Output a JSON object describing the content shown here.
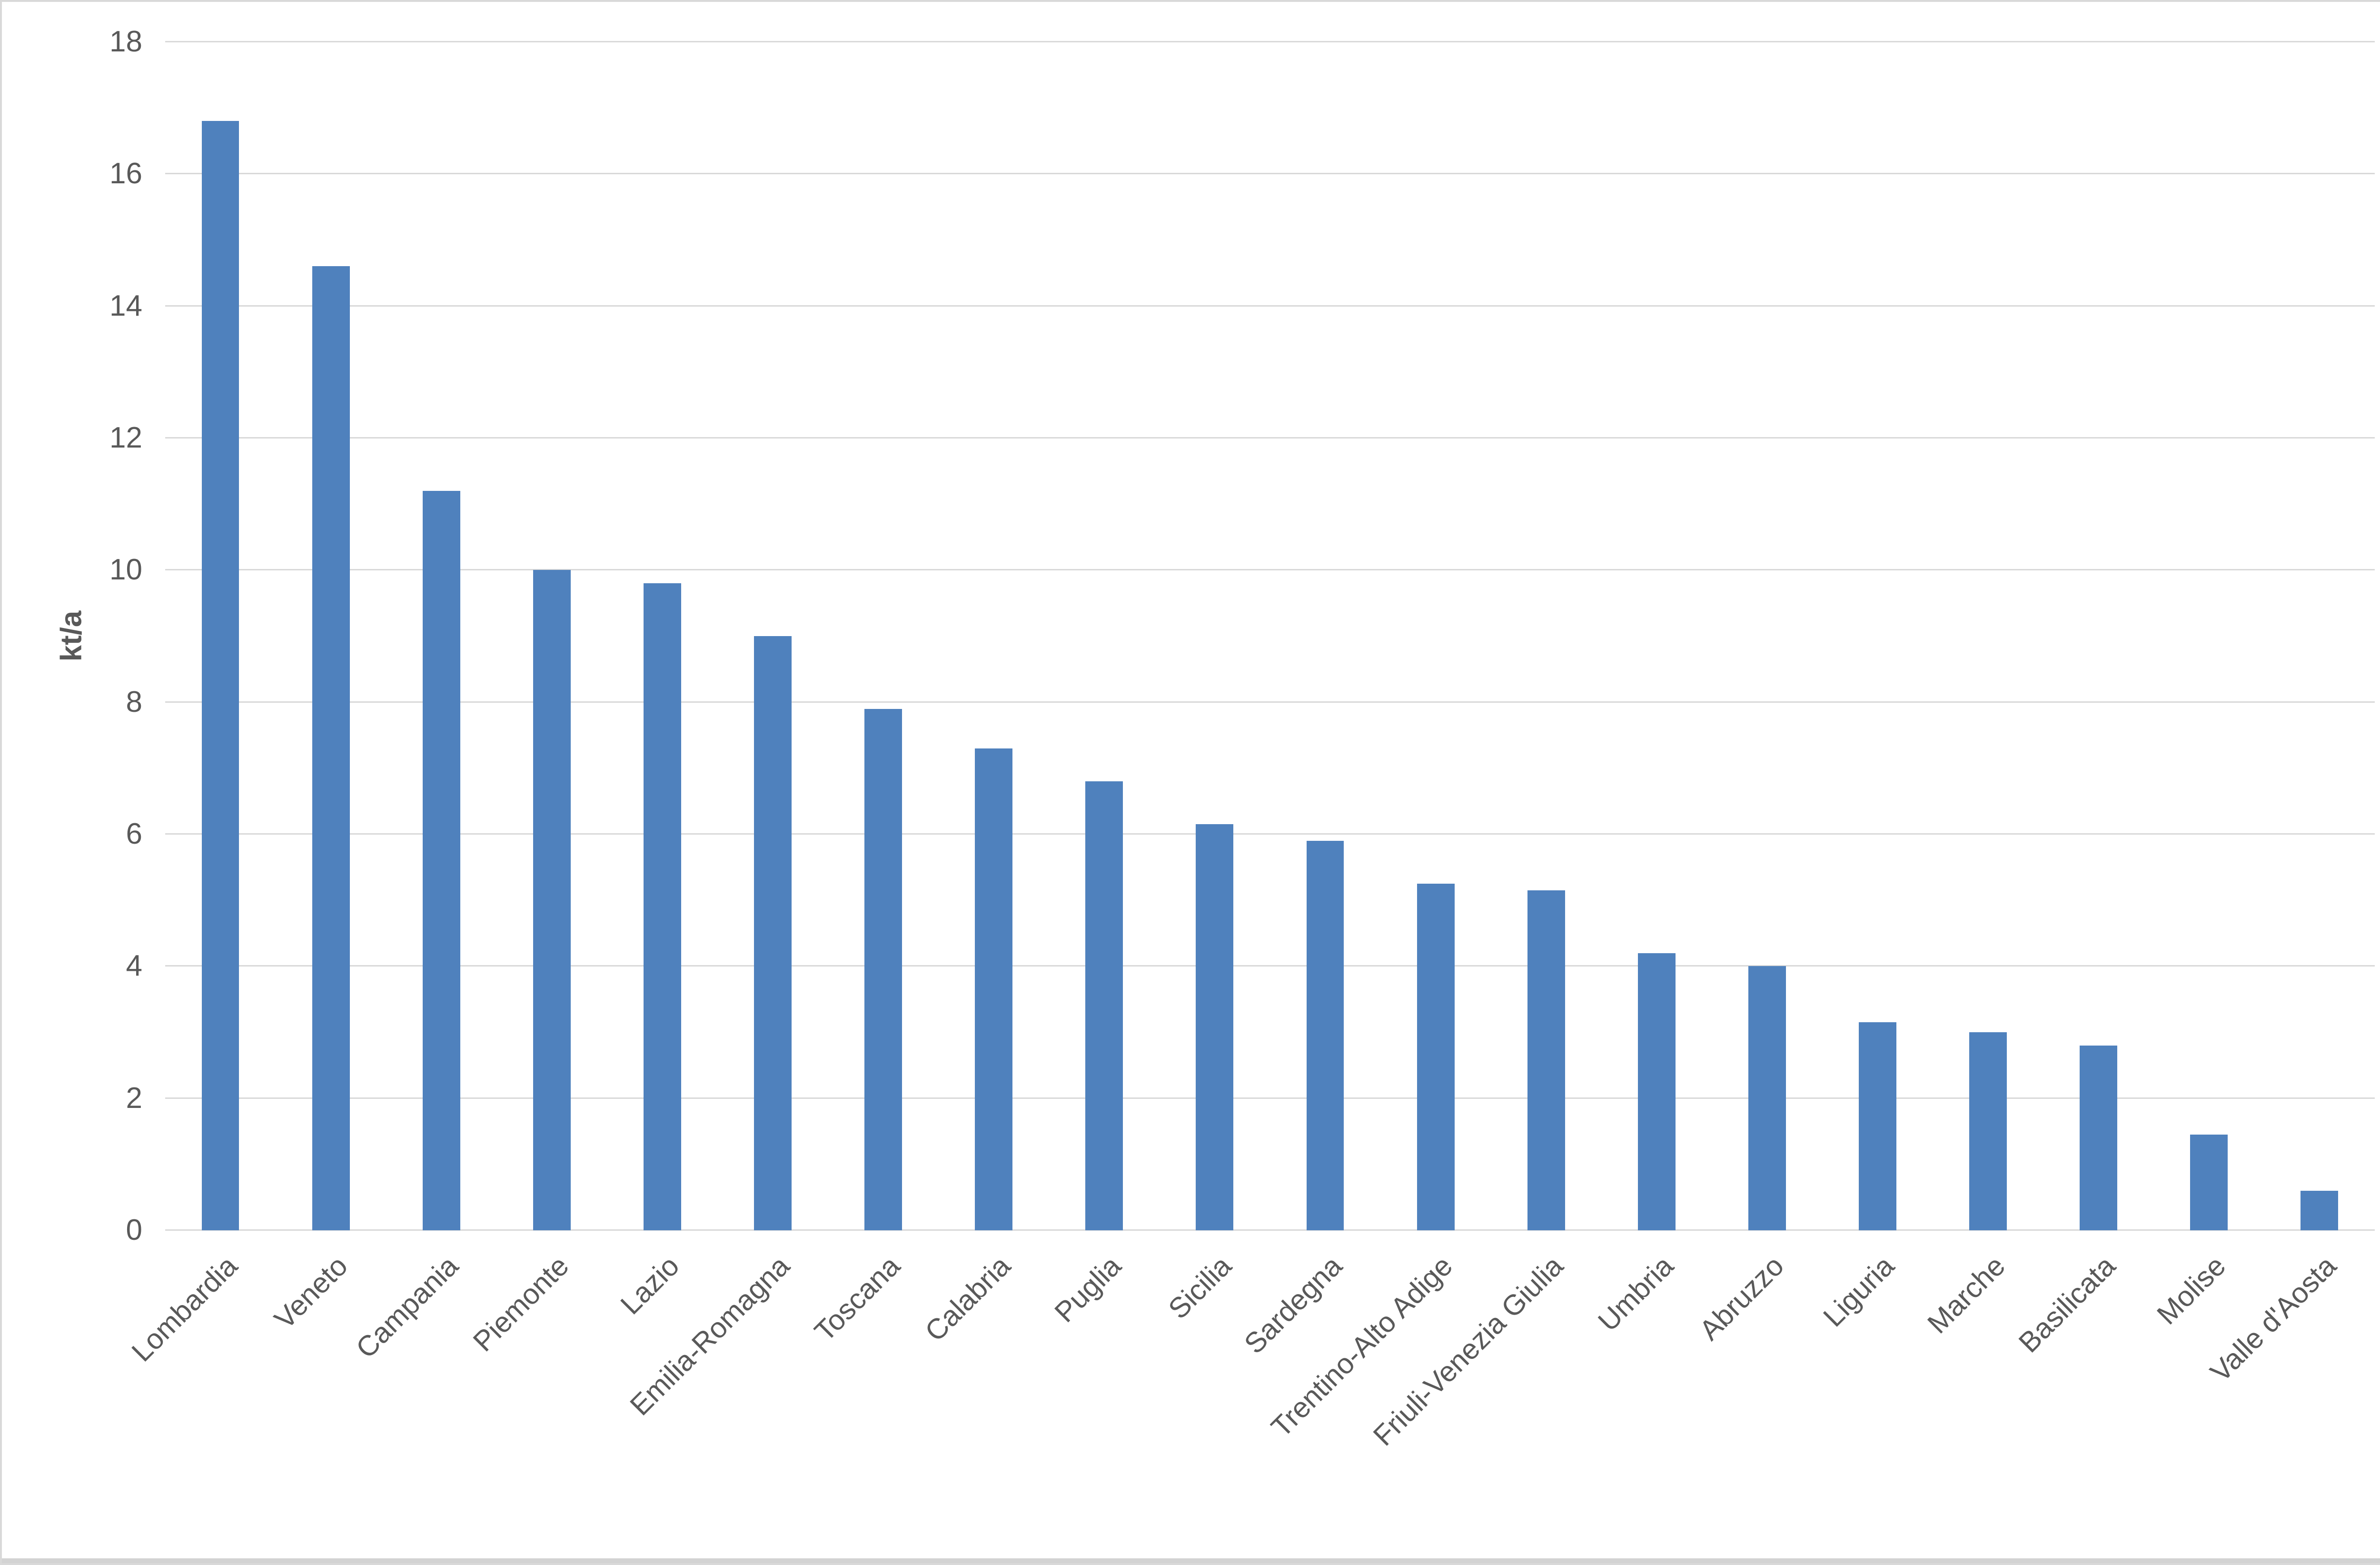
{
  "page": {
    "background_color": "#ffffff",
    "border_color": "#d9d9d9",
    "bottom_bar_color": "#d3d3d3"
  },
  "chart_data": {
    "type": "bar",
    "title": "",
    "xlabel": "",
    "ylabel": "kt/a",
    "categories": [
      "Lombardia",
      "Veneto",
      "Campania",
      "Piemonte",
      "Lazio",
      "Emilia-Romagna",
      "Toscana",
      "Calabria",
      "Puglia",
      "Sicilia",
      "Sardegna",
      "Trentino-Alto Adige",
      "Friuli-Venezia Giulia",
      "Umbria",
      "Abruzzo",
      "Liguria",
      "Marche",
      "Basilicata",
      "Molise",
      "Valle d'Aosta"
    ],
    "values": [
      16.8,
      14.6,
      11.2,
      10,
      9.8,
      9,
      7.9,
      7.3,
      6.8,
      6.15,
      5.9,
      5.25,
      5.15,
      4.2,
      4,
      3.15,
      3,
      2.8,
      1.45,
      0.6
    ],
    "ylim": [
      0,
      18
    ],
    "ytick_step": 2,
    "ytick_labels": [
      "0",
      "2",
      "4",
      "6",
      "8",
      "10",
      "12",
      "14",
      "16",
      "18"
    ],
    "grid": true,
    "legend": "none",
    "bar_color": "#4F81BD",
    "gridline_color": "#d9d9d9",
    "axis_text_color": "#595959",
    "bar_width_fraction": 0.34
  }
}
